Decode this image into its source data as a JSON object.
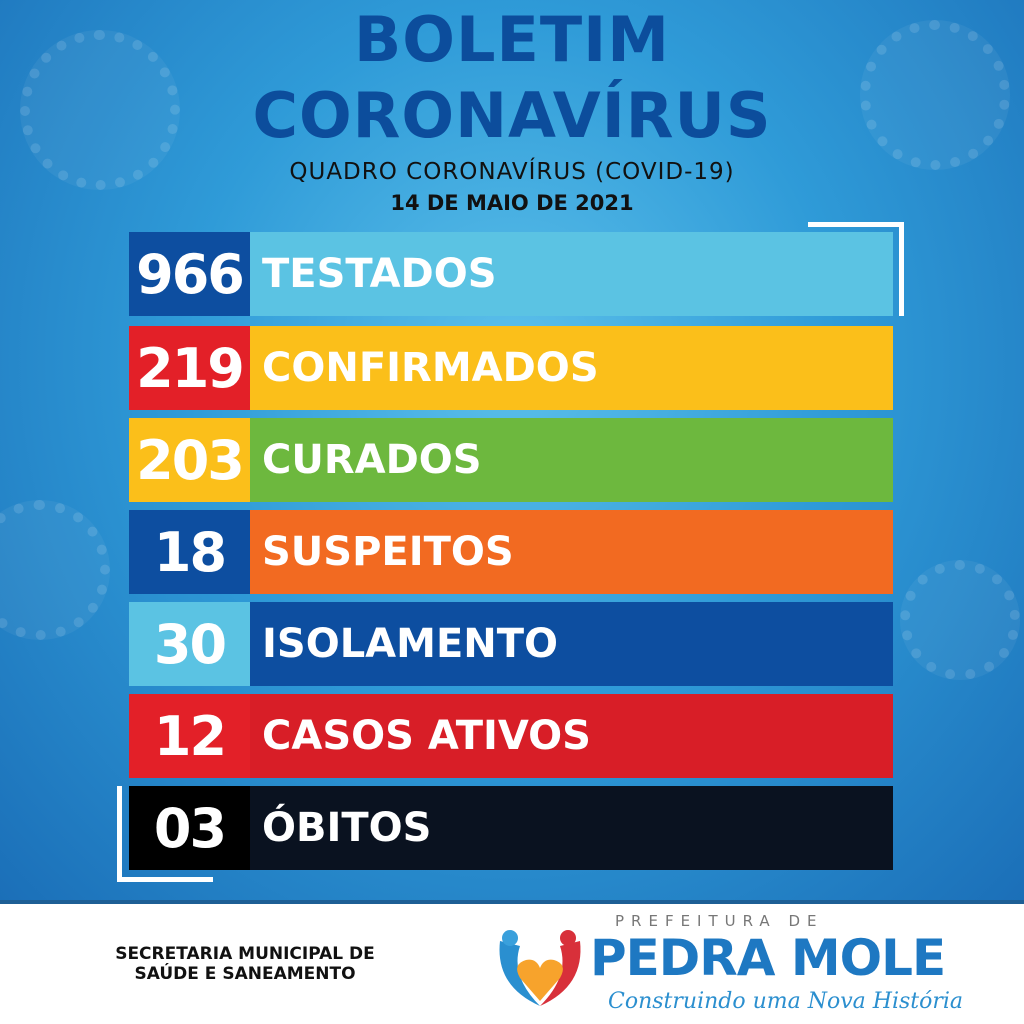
{
  "header": {
    "title_line1": "BOLETIM",
    "title_line2": "CORONAVÍRUS",
    "subtitle": "QUADRO CORONAVÍRUS (COVID-19)",
    "date": "14 DE MAIO DE 2021"
  },
  "rows": [
    {
      "value": "966",
      "label": "TESTADOS",
      "num_color": "#0d4ea0",
      "label_color": "#5bc3e3"
    },
    {
      "value": "219",
      "label": "CONFIRMADOS",
      "num_color": "#e32028",
      "label_color": "#fbbf1a"
    },
    {
      "value": "203",
      "label": "CURADOS",
      "num_color": "#fbbf1a",
      "label_color": "#6db83e"
    },
    {
      "value": "18",
      "label": "SUSPEITOS",
      "num_color": "#0d4ea0",
      "label_color": "#f26a21"
    },
    {
      "value": "30",
      "label": "ISOLAMENTO",
      "num_color": "#5bc3e3",
      "label_color": "#0d4ea0"
    },
    {
      "value": "12",
      "label": "CASOS ATIVOS",
      "num_color": "#e32028",
      "label_color": "#d81e27"
    },
    {
      "value": "03",
      "label": "ÓBITOS",
      "num_color": "#000000",
      "label_color": "#0a1220"
    }
  ],
  "footer": {
    "secretaria_line1": "SECRETARIA MUNICIPAL DE",
    "secretaria_line2": "SAÚDE E SANEAMENTO",
    "logo_top": "PREFEITURA DE",
    "logo_name": "PEDRA MOLE",
    "logo_slogan": "Construindo uma Nova História"
  }
}
